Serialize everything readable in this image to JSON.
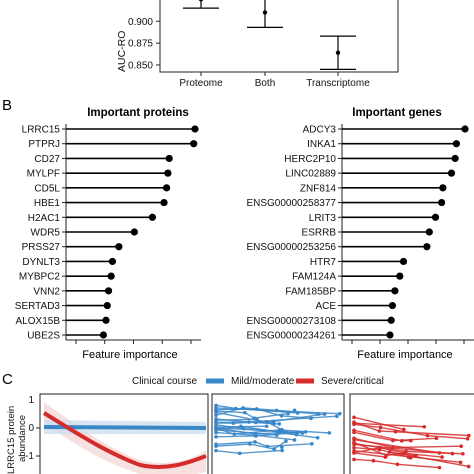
{
  "panel_a": {
    "ylabel": "AUC-RO",
    "chart_data": {
      "type": "errorbar",
      "categories": [
        "Proteome",
        "Both",
        "Transcriptome"
      ],
      "values": [
        0.925,
        0.91,
        0.864
      ],
      "lower": [
        0.915,
        0.893,
        0.845
      ],
      "upper": [
        0.935,
        0.927,
        0.883
      ],
      "yticks": [
        "0.900",
        "0.875",
        "0.850"
      ],
      "ylim": [
        0.842,
        0.93
      ]
    }
  },
  "panel_b": {
    "letter": "B",
    "proteins": {
      "title": "Important proteins",
      "xlabel": "Feature importance",
      "chart_data": {
        "type": "lollipop",
        "categories": [
          "LRRC15",
          "PTPRJ",
          "CD27",
          "MYLPF",
          "CD5L",
          "HBE1",
          "H2AC1",
          "WDR5",
          "PRSS27",
          "DYNLT3",
          "MYBPC2",
          "VNN2",
          "SERTAD3",
          "ALOX15B",
          "UBE2S"
        ],
        "values": [
          1.0,
          0.99,
          0.8,
          0.79,
          0.78,
          0.76,
          0.67,
          0.53,
          0.41,
          0.36,
          0.35,
          0.33,
          0.32,
          0.31,
          0.29
        ]
      }
    },
    "genes": {
      "title": "Important genes",
      "xlabel": "Feature importance",
      "chart_data": {
        "type": "lollipop",
        "categories": [
          "ADCY3",
          "INKA1",
          "HERC2P10",
          "LINC02889",
          "ZNF814",
          "ENSG00000258377",
          "LRIT3",
          "ESRRB",
          "ENSG00000253256",
          "HTR7",
          "FAM124A",
          "FAM185BP",
          "ACE",
          "ENSG00000273108",
          "ENSG00000234261"
        ],
        "values": [
          1.0,
          0.93,
          0.92,
          0.89,
          0.82,
          0.81,
          0.76,
          0.71,
          0.69,
          0.5,
          0.47,
          0.43,
          0.41,
          0.4,
          0.39
        ]
      }
    }
  },
  "panel_c": {
    "letter": "C",
    "legend_title": "Clinical course",
    "legend_items": [
      {
        "label": "Mild/moderate",
        "color": "#3a87c8"
      },
      {
        "label": "Severe/critical",
        "color": "#d62b2b"
      }
    ],
    "ylabel_line1": "LRRC15 protein",
    "ylabel_line2": "abundance",
    "yticks": [
      "0",
      "-1"
    ],
    "ytick_top": "1"
  }
}
